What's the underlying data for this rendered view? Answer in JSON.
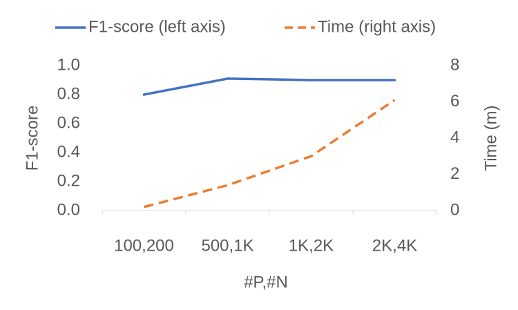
{
  "chart_data": {
    "type": "line",
    "categories": [
      "100,200",
      "500,1K",
      "1K,2K",
      "2K,4K"
    ],
    "series": [
      {
        "name": "F1-score (left axis)",
        "color": "#4472c4",
        "values": [
          0.8,
          0.91,
          0.9,
          0.9
        ],
        "dash": false
      },
      {
        "name": "Time (right axis)",
        "color": "#ed7d31",
        "values": [
          0.2,
          1.4,
          3.0,
          6.1
        ],
        "axis": "y2",
        "dash": true
      }
    ],
    "x_label": "#P,#N",
    "y_label": "F1-score",
    "y2_label": "Time (m)",
    "ylim": [
      0,
      1.0
    ],
    "yticks": [
      {
        "value": 0,
        "label": "0.0"
      },
      0.2,
      0.4,
      0.6,
      0.8,
      {
        "value": 1.0,
        "label": "1.0"
      }
    ],
    "y2lim": [
      0,
      8
    ],
    "y2ticks": [
      0,
      2,
      4,
      6,
      8
    ],
    "grid": false,
    "legend": "top"
  }
}
